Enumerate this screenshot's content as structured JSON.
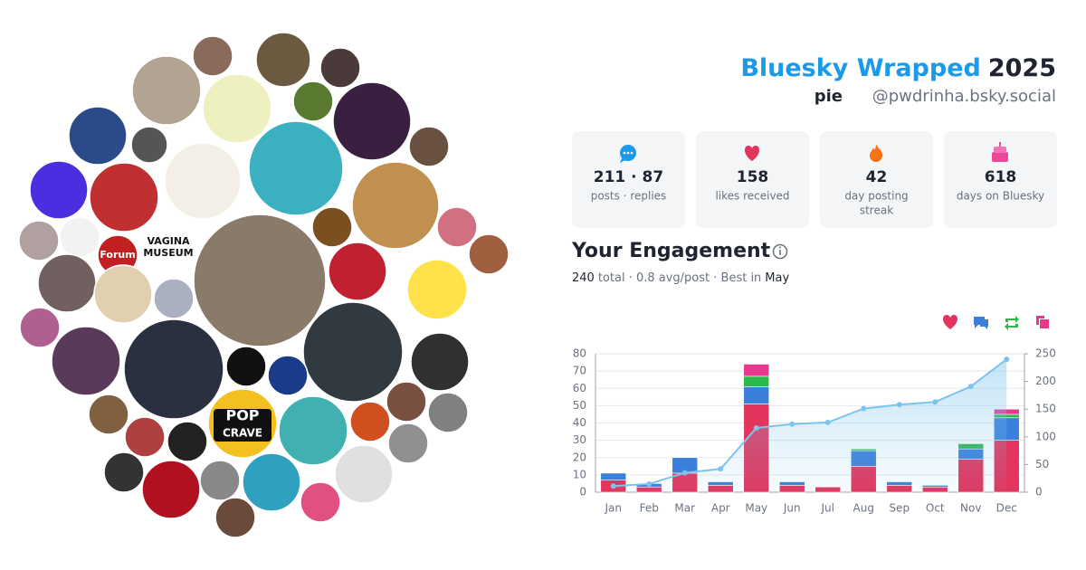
{
  "header": {
    "title_brand": "Bluesky Wrapped",
    "title_year": "2025",
    "display_name": "pie",
    "handle": "@pwdrinha.bsky.social"
  },
  "stats": [
    {
      "value": "211 · 87",
      "label": "posts · replies"
    },
    {
      "value": "158",
      "label": "likes received"
    },
    {
      "value": "42",
      "label": "day posting",
      "label2": "streak"
    },
    {
      "value": "618",
      "label": "days on Bluesky"
    }
  ],
  "engagement": {
    "title": "Your Engagement",
    "total": "240",
    "summary": "total · 0.8 avg/post · Best in",
    "best": "May"
  },
  "collage_labels": [
    "Forum",
    "VAGINA",
    "MUSEUM",
    "POP",
    "CRAVE"
  ],
  "chart_data": {
    "type": "bar",
    "categories": [
      "Jan",
      "Feb",
      "Mar",
      "Apr",
      "May",
      "Jun",
      "Jul",
      "Aug",
      "Sep",
      "Oct",
      "Nov",
      "Dec"
    ],
    "series": [
      {
        "color": "#e2345c",
        "values": [
          7,
          3,
          11,
          4,
          51,
          4,
          3,
          15,
          4,
          3,
          19,
          30
        ]
      },
      {
        "color": "#3b7fdc",
        "values": [
          4,
          2,
          9,
          2,
          10,
          2,
          0,
          9,
          2,
          1,
          6,
          13
        ]
      },
      {
        "color": "#2db84b",
        "values": [
          0,
          0,
          0,
          0,
          6,
          0,
          0,
          1,
          0,
          0,
          3,
          2
        ]
      },
      {
        "color": "#e8378c",
        "values": [
          0,
          0,
          0,
          0,
          7,
          0,
          0,
          0,
          0,
          0,
          0,
          3
        ]
      },
      {
        "type": "line",
        "axis": "y2",
        "color": "#7cc4ec",
        "values": [
          11,
          15,
          35,
          42,
          116,
          123,
          126,
          151,
          158,
          163,
          191,
          240
        ]
      }
    ],
    "ylim": [
      0,
      80
    ],
    "yticks": [
      0,
      10,
      20,
      30,
      40,
      50,
      60,
      70,
      80
    ],
    "y2lim": [
      0,
      250
    ],
    "y2ticks": [
      0,
      50,
      100,
      150,
      200,
      250
    ],
    "grid": true
  }
}
